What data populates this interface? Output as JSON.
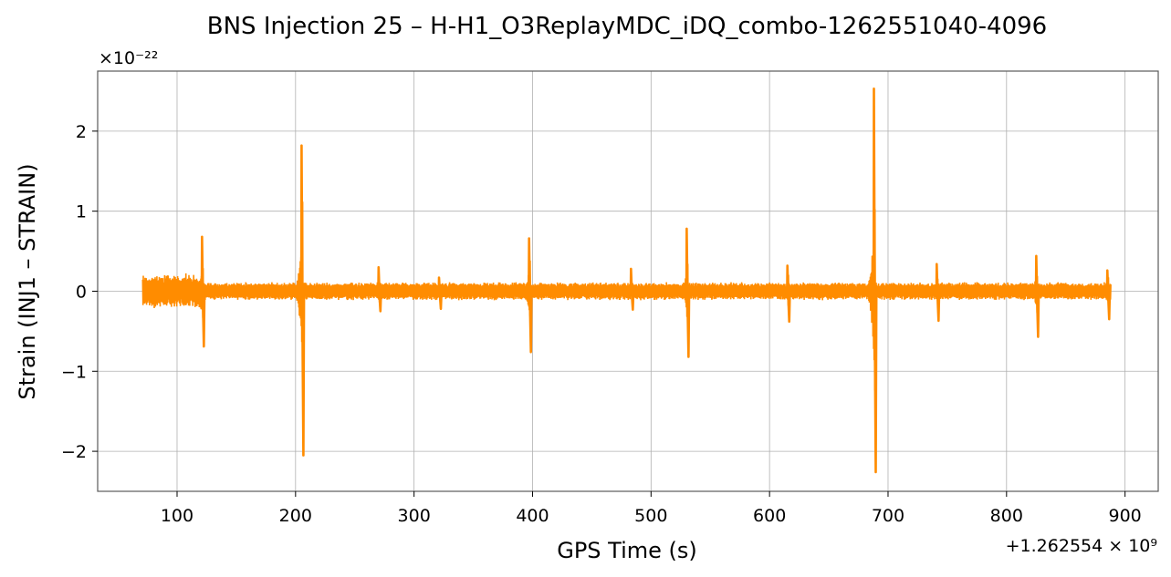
{
  "chart_data": {
    "type": "line",
    "title": "BNS Injection 25 – H-H1_O3ReplayMDC_iDQ_combo-1262551040-4096",
    "xlabel": "GPS Time (s)",
    "ylabel": "Strain (INJ1 – STRAIN)",
    "x_offset_label": "+1.262554 × 10⁹",
    "y_scale_label": "×10⁻²²",
    "xlim": [
      33,
      928
    ],
    "ylim": [
      -2.5,
      2.75
    ],
    "y_scale_exponent": -22,
    "x_ticks": [
      100,
      200,
      300,
      400,
      500,
      600,
      700,
      800,
      900
    ],
    "x_tick_labels": [
      "100",
      "200",
      "300",
      "400",
      "500",
      "600",
      "700",
      "800",
      "900"
    ],
    "y_ticks": [
      -2,
      -1,
      0,
      1,
      2
    ],
    "y_tick_labels": [
      "−2",
      "−1",
      "0",
      "1",
      "2"
    ],
    "grid": true,
    "line_color": "#ff8c00",
    "series": [
      {
        "x_range": [
          71,
          888
        ],
        "baseline_noise_amplitude": 0.1,
        "glitches": [
          {
            "x": 122,
            "max": 0.68,
            "min": -0.69
          },
          {
            "x": 206,
            "max": 1.82,
            "min": -2.05
          },
          {
            "x": 271,
            "max": 0.3,
            "min": -0.25
          },
          {
            "x": 322,
            "max": 0.17,
            "min": -0.22
          },
          {
            "x": 398,
            "max": 0.66,
            "min": -0.76
          },
          {
            "x": 484,
            "max": 0.28,
            "min": -0.23
          },
          {
            "x": 531,
            "max": 0.78,
            "min": -0.82
          },
          {
            "x": 616,
            "max": 0.32,
            "min": -0.38
          },
          {
            "x": 689,
            "max": 2.53,
            "min": -2.26
          },
          {
            "x": 742,
            "max": 0.34,
            "min": -0.37
          },
          {
            "x": 826,
            "max": 0.44,
            "min": -0.57
          },
          {
            "x": 886,
            "max": 0.26,
            "min": -0.35
          }
        ]
      }
    ]
  }
}
